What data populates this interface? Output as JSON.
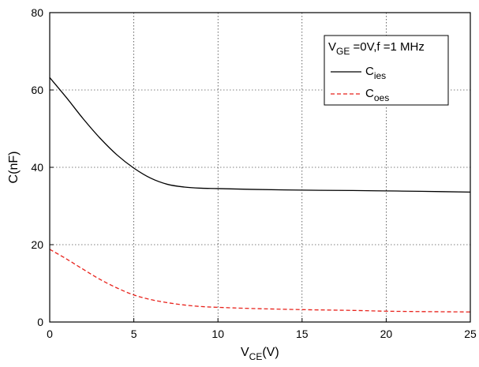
{
  "chart_data": {
    "type": "line",
    "xlabel": {
      "main": "V",
      "sub": "CE",
      "suffix": "(V)"
    },
    "ylabel": "C(nF)",
    "xlim": [
      0,
      25
    ],
    "ylim": [
      0,
      80
    ],
    "xticks": [
      "0",
      "5",
      "10",
      "15",
      "20",
      "25"
    ],
    "yticks": [
      "0",
      "20",
      "40",
      "60",
      "80"
    ],
    "grid": true,
    "legend": {
      "placement": "top-right",
      "header": {
        "main": "V",
        "sub": "GE",
        "suffix": " =0V,f =1 MHz"
      }
    },
    "series": [
      {
        "label_main": "C",
        "label_sub": "ies",
        "color": "#000000",
        "style": "solid",
        "points": [
          [
            0,
            63.2
          ],
          [
            1,
            58.0
          ],
          [
            2,
            52.5
          ],
          [
            3,
            47.5
          ],
          [
            4,
            43.2
          ],
          [
            5,
            39.8
          ],
          [
            6,
            37.2
          ],
          [
            7,
            35.6
          ],
          [
            8,
            34.9
          ],
          [
            9,
            34.6
          ],
          [
            10,
            34.5
          ],
          [
            12,
            34.3
          ],
          [
            15,
            34.1
          ],
          [
            18,
            34.0
          ],
          [
            20,
            33.9
          ],
          [
            22,
            33.8
          ],
          [
            25,
            33.6
          ]
        ]
      },
      {
        "label_main": "C",
        "label_sub": "oes",
        "color": "#e8221b",
        "style": "dashed",
        "points": [
          [
            0,
            18.8
          ],
          [
            1,
            16.3
          ],
          [
            2,
            13.6
          ],
          [
            3,
            11.0
          ],
          [
            4,
            8.8
          ],
          [
            5,
            7.0
          ],
          [
            6,
            5.8
          ],
          [
            7,
            5.0
          ],
          [
            8,
            4.4
          ],
          [
            9,
            4.0
          ],
          [
            10,
            3.8
          ],
          [
            12,
            3.5
          ],
          [
            15,
            3.2
          ],
          [
            18,
            3.0
          ],
          [
            20,
            2.8
          ],
          [
            22,
            2.7
          ],
          [
            25,
            2.6
          ]
        ]
      }
    ]
  }
}
